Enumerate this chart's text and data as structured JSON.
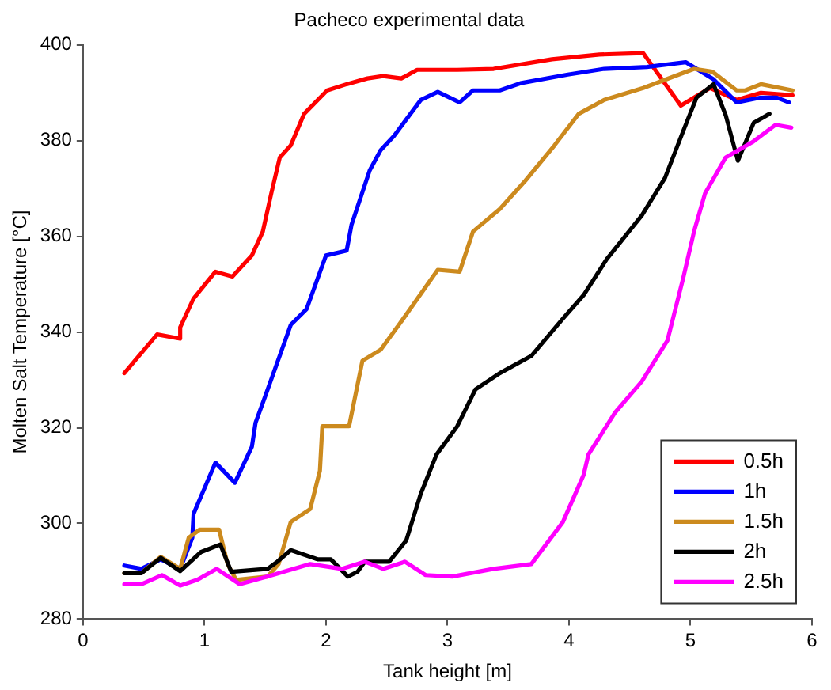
{
  "chart_data": {
    "type": "line",
    "title": "Pacheco experimental data",
    "xlabel": "Tank height [m]",
    "ylabel": "Molten Salt Temperature [°C]",
    "xlim": [
      0,
      6
    ],
    "xticks": [
      0,
      1,
      2,
      3,
      4,
      5,
      6
    ],
    "ylim": [
      280,
      400
    ],
    "yticks": [
      280,
      300,
      320,
      340,
      360,
      380,
      400
    ],
    "legend": "bottom right",
    "marker": "none",
    "line_style": "solid",
    "series": [
      {
        "name": "0.5h",
        "color": "#ff0000",
        "x": [
          0.34,
          0.61,
          0.8,
          0.8,
          0.91,
          1.09,
          1.23,
          1.39,
          1.48,
          1.55,
          1.62,
          1.71,
          1.82,
          2.01,
          2.17,
          2.34,
          2.47,
          2.62,
          2.75,
          3.08,
          3.38,
          3.86,
          4.25,
          4.61,
          4.92,
          5.16,
          5.38,
          5.58,
          5.84
        ],
        "values": [
          331.4,
          339.5,
          338.6,
          341,
          347,
          352.6,
          351.6,
          356,
          361,
          369,
          376.5,
          379,
          385.6,
          390.5,
          391.8,
          393,
          393.5,
          393,
          394.8,
          394.8,
          395,
          397,
          398,
          398.3,
          387.3,
          391,
          388.5,
          390,
          389.5
        ]
      },
      {
        "name": "1h",
        "color": "#0000ff",
        "x": [
          0.34,
          0.48,
          0.64,
          0.8,
          0.9,
          0.91,
          1.09,
          1.25,
          1.39,
          1.42,
          1.52,
          1.71,
          1.84,
          2.0,
          2.17,
          2.21,
          2.36,
          2.45,
          2.56,
          2.78,
          2.92,
          3.1,
          3.21,
          3.43,
          3.6,
          3.99,
          4.29,
          4.64,
          4.96,
          5.19,
          5.38,
          5.58,
          5.71,
          5.81
        ],
        "values": [
          291.2,
          290.5,
          292.5,
          290.5,
          297,
          302,
          312.7,
          308.5,
          316,
          321,
          328,
          341.5,
          344.8,
          356,
          357,
          362.4,
          373.8,
          378,
          381,
          388.5,
          390.2,
          388,
          390.5,
          390.5,
          392,
          393.8,
          395,
          395.4,
          396.4,
          392.8,
          388,
          389,
          389,
          388
        ]
      },
      {
        "name": "1.5h",
        "color": "#cc8a1e",
        "x": [
          0.34,
          0.48,
          0.64,
          0.8,
          0.87,
          0.96,
          1.12,
          1.19,
          1.26,
          1.52,
          1.61,
          1.71,
          1.87,
          1.95,
          1.97,
          2.19,
          2.3,
          2.45,
          2.6,
          2.92,
          3.1,
          3.21,
          3.43,
          3.64,
          3.88,
          4.08,
          4.29,
          4.61,
          4.86,
          5.03,
          5.18,
          5.38,
          5.45,
          5.58,
          5.84
        ],
        "values": [
          289.6,
          289.6,
          293,
          290.5,
          297,
          298.7,
          298.7,
          291.5,
          288.2,
          288.9,
          291.5,
          300.3,
          303,
          311,
          320.3,
          320.3,
          334,
          336.3,
          341.5,
          353,
          352.6,
          361,
          365.7,
          371.6,
          379,
          385.6,
          388.5,
          391,
          393.4,
          395,
          394.4,
          390.5,
          390.5,
          391.8,
          390.5
        ]
      },
      {
        "name": "2h",
        "color": "#000000",
        "x": [
          0.34,
          0.48,
          0.64,
          0.8,
          0.97,
          1.13,
          1.22,
          1.52,
          1.6,
          1.71,
          1.93,
          2.04,
          2.18,
          2.26,
          2.32,
          2.52,
          2.66,
          2.78,
          2.91,
          3.08,
          3.23,
          3.43,
          3.69,
          3.95,
          4.12,
          4.31,
          4.6,
          4.79,
          4.94,
          5.05,
          5.19,
          5.29,
          5.39,
          5.52,
          5.65
        ],
        "values": [
          289.6,
          289.6,
          292.8,
          290,
          294,
          295.6,
          289.9,
          290.5,
          292,
          294.4,
          292.5,
          292.5,
          288.9,
          289.9,
          292,
          292,
          296.4,
          306.2,
          314.4,
          320.3,
          328,
          331.4,
          335,
          342.8,
          347.7,
          355.2,
          364.4,
          372.2,
          382,
          389,
          391.8,
          385.3,
          375.8,
          383.7,
          385.6
        ]
      },
      {
        "name": "2.5h",
        "color": "#ff00ff",
        "x": [
          0.34,
          0.48,
          0.65,
          0.8,
          0.94,
          1.1,
          1.29,
          1.52,
          1.87,
          2.13,
          2.32,
          2.47,
          2.65,
          2.82,
          3.04,
          3.38,
          3.69,
          3.95,
          4.12,
          4.16,
          4.38,
          4.6,
          4.81,
          4.94,
          5.03,
          5.12,
          5.29,
          5.51,
          5.7,
          5.83
        ],
        "values": [
          287.3,
          287.3,
          289.2,
          287,
          288.2,
          290.5,
          287.3,
          288.9,
          291.5,
          290.5,
          292,
          290.5,
          292,
          289.2,
          288.9,
          290.5,
          291.5,
          300.3,
          310.1,
          314.4,
          323.2,
          329.7,
          338.2,
          351.3,
          361.1,
          369,
          376.5,
          379.7,
          383.3,
          382.7
        ]
      }
    ]
  }
}
